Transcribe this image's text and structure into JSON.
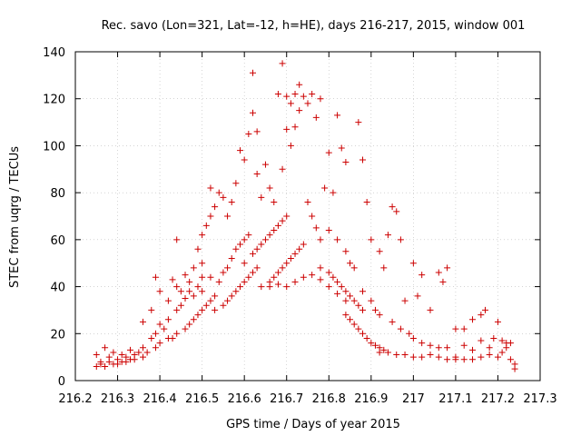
{
  "chart_data": {
    "type": "scatter",
    "title": "Rec. savo (Lon=321, Lat=-12, h=HE), days 216-217, 2015, window 001",
    "xlabel": "GPS time / Days of year 2015",
    "ylabel": "STEC from uqrg / TECUs",
    "xlim": [
      216.2,
      217.3
    ],
    "ylim": [
      0,
      140
    ],
    "xticks": [
      "216.2",
      "216.3",
      "216.4",
      "216.5",
      "216.6",
      "216.7",
      "216.8",
      "216.9",
      "217",
      "217.1",
      "217.2",
      "217.3"
    ],
    "yticks": [
      "0",
      "20",
      "40",
      "60",
      "80",
      "100",
      "120",
      "140"
    ],
    "grid": true,
    "marker": "plus",
    "color": "#cc0000",
    "points": [
      [
        216.25,
        6
      ],
      [
        216.26,
        7
      ],
      [
        216.27,
        6
      ],
      [
        216.28,
        8
      ],
      [
        216.29,
        7
      ],
      [
        216.3,
        9
      ],
      [
        216.31,
        8
      ],
      [
        216.32,
        10
      ],
      [
        216.33,
        9
      ],
      [
        216.34,
        11
      ],
      [
        216.25,
        11
      ],
      [
        216.27,
        14
      ],
      [
        216.29,
        12
      ],
      [
        216.31,
        11
      ],
      [
        216.33,
        13
      ],
      [
        216.35,
        12
      ],
      [
        216.36,
        14
      ],
      [
        216.38,
        18
      ],
      [
        216.39,
        20
      ],
      [
        216.41,
        22
      ],
      [
        216.26,
        8
      ],
      [
        216.28,
        10
      ],
      [
        216.3,
        7
      ],
      [
        216.32,
        8
      ],
      [
        216.34,
        9
      ],
      [
        216.36,
        10
      ],
      [
        216.37,
        12
      ],
      [
        216.39,
        14
      ],
      [
        216.4,
        16
      ],
      [
        216.42,
        18
      ],
      [
        216.36,
        25
      ],
      [
        216.38,
        30
      ],
      [
        216.39,
        44
      ],
      [
        216.4,
        38
      ],
      [
        216.42,
        34
      ],
      [
        216.43,
        43
      ],
      [
        216.44,
        40
      ],
      [
        216.45,
        38
      ],
      [
        216.46,
        45
      ],
      [
        216.47,
        42
      ],
      [
        216.4,
        24
      ],
      [
        216.42,
        26
      ],
      [
        216.44,
        30
      ],
      [
        216.45,
        32
      ],
      [
        216.46,
        35
      ],
      [
        216.47,
        38
      ],
      [
        216.48,
        36
      ],
      [
        216.49,
        40
      ],
      [
        216.5,
        44
      ],
      [
        216.5,
        50
      ],
      [
        216.43,
        18
      ],
      [
        216.44,
        20
      ],
      [
        216.46,
        22
      ],
      [
        216.47,
        24
      ],
      [
        216.48,
        26
      ],
      [
        216.49,
        28
      ],
      [
        216.5,
        30
      ],
      [
        216.51,
        32
      ],
      [
        216.52,
        34
      ],
      [
        216.53,
        36
      ],
      [
        216.44,
        60
      ],
      [
        216.48,
        48
      ],
      [
        216.49,
        56
      ],
      [
        216.5,
        62
      ],
      [
        216.51,
        66
      ],
      [
        216.52,
        70
      ],
      [
        216.53,
        74
      ],
      [
        216.52,
        82
      ],
      [
        216.54,
        80
      ],
      [
        216.55,
        78
      ],
      [
        216.5,
        38
      ],
      [
        216.52,
        44
      ],
      [
        216.54,
        42
      ],
      [
        216.55,
        46
      ],
      [
        216.56,
        48
      ],
      [
        216.57,
        52
      ],
      [
        216.58,
        56
      ],
      [
        216.59,
        58
      ],
      [
        216.6,
        60
      ],
      [
        216.61,
        62
      ],
      [
        216.53,
        30
      ],
      [
        216.55,
        32
      ],
      [
        216.56,
        34
      ],
      [
        216.57,
        36
      ],
      [
        216.58,
        38
      ],
      [
        216.59,
        40
      ],
      [
        216.6,
        42
      ],
      [
        216.61,
        44
      ],
      [
        216.62,
        46
      ],
      [
        216.63,
        48
      ],
      [
        216.56,
        70
      ],
      [
        216.57,
        76
      ],
      [
        216.58,
        84
      ],
      [
        216.59,
        98
      ],
      [
        216.6,
        94
      ],
      [
        216.61,
        105
      ],
      [
        216.62,
        114
      ],
      [
        216.62,
        131
      ],
      [
        216.63,
        106
      ],
      [
        216.63,
        88
      ],
      [
        216.6,
        50
      ],
      [
        216.62,
        54
      ],
      [
        216.63,
        56
      ],
      [
        216.64,
        58
      ],
      [
        216.65,
        60
      ],
      [
        216.66,
        62
      ],
      [
        216.67,
        64
      ],
      [
        216.68,
        66
      ],
      [
        216.69,
        68
      ],
      [
        216.7,
        70
      ],
      [
        216.64,
        78
      ],
      [
        216.65,
        92
      ],
      [
        216.66,
        82
      ],
      [
        216.67,
        76
      ],
      [
        216.68,
        122
      ],
      [
        216.69,
        135
      ],
      [
        216.7,
        121
      ],
      [
        216.71,
        118
      ],
      [
        216.72,
        122
      ],
      [
        216.73,
        126
      ],
      [
        216.64,
        40
      ],
      [
        216.66,
        42
      ],
      [
        216.67,
        44
      ],
      [
        216.68,
        46
      ],
      [
        216.69,
        48
      ],
      [
        216.7,
        50
      ],
      [
        216.71,
        52
      ],
      [
        216.72,
        54
      ],
      [
        216.73,
        56
      ],
      [
        216.74,
        58
      ],
      [
        216.69,
        90
      ],
      [
        216.7,
        107
      ],
      [
        216.71,
        100
      ],
      [
        216.72,
        108
      ],
      [
        216.73,
        115
      ],
      [
        216.74,
        121
      ],
      [
        216.75,
        118
      ],
      [
        216.76,
        122
      ],
      [
        216.77,
        112
      ],
      [
        216.78,
        120
      ],
      [
        216.66,
        40
      ],
      [
        216.68,
        41
      ],
      [
        216.7,
        40
      ],
      [
        216.72,
        42
      ],
      [
        216.74,
        44
      ],
      [
        216.76,
        45
      ],
      [
        216.78,
        43
      ],
      [
        216.8,
        40
      ],
      [
        216.82,
        37
      ],
      [
        216.84,
        34
      ],
      [
        216.75,
        76
      ],
      [
        216.76,
        70
      ],
      [
        216.77,
        65
      ],
      [
        216.78,
        60
      ],
      [
        216.79,
        82
      ],
      [
        216.8,
        97
      ],
      [
        216.81,
        80
      ],
      [
        216.82,
        113
      ],
      [
        216.83,
        99
      ],
      [
        216.84,
        93
      ],
      [
        216.78,
        48
      ],
      [
        216.8,
        46
      ],
      [
        216.81,
        44
      ],
      [
        216.82,
        42
      ],
      [
        216.83,
        40
      ],
      [
        216.84,
        38
      ],
      [
        216.85,
        36
      ],
      [
        216.86,
        34
      ],
      [
        216.87,
        32
      ],
      [
        216.88,
        30
      ],
      [
        216.8,
        64
      ],
      [
        216.82,
        60
      ],
      [
        216.84,
        55
      ],
      [
        216.85,
        50
      ],
      [
        216.86,
        48
      ],
      [
        216.87,
        110
      ],
      [
        216.88,
        94
      ],
      [
        216.89,
        76
      ],
      [
        216.9,
        60
      ],
      [
        216.92,
        55
      ],
      [
        216.84,
        28
      ],
      [
        216.85,
        26
      ],
      [
        216.86,
        24
      ],
      [
        216.87,
        22
      ],
      [
        216.88,
        20
      ],
      [
        216.89,
        18
      ],
      [
        216.9,
        16
      ],
      [
        216.91,
        15
      ],
      [
        216.92,
        14
      ],
      [
        216.93,
        13
      ],
      [
        216.88,
        38
      ],
      [
        216.9,
        34
      ],
      [
        216.91,
        30
      ],
      [
        216.92,
        28
      ],
      [
        216.93,
        48
      ],
      [
        216.94,
        62
      ],
      [
        216.95,
        74
      ],
      [
        216.96,
        72
      ],
      [
        216.97,
        60
      ],
      [
        216.98,
        34
      ],
      [
        216.92,
        12
      ],
      [
        216.94,
        12
      ],
      [
        216.96,
        11
      ],
      [
        216.98,
        11
      ],
      [
        217.0,
        10
      ],
      [
        217.02,
        10
      ],
      [
        217.04,
        11
      ],
      [
        217.06,
        10
      ],
      [
        217.08,
        9
      ],
      [
        217.1,
        9
      ],
      [
        216.95,
        25
      ],
      [
        216.97,
        22
      ],
      [
        216.99,
        20
      ],
      [
        217.0,
        50
      ],
      [
        217.01,
        36
      ],
      [
        217.02,
        45
      ],
      [
        217.04,
        30
      ],
      [
        217.06,
        46
      ],
      [
        217.07,
        42
      ],
      [
        217.08,
        48
      ],
      [
        217.0,
        18
      ],
      [
        217.02,
        16
      ],
      [
        217.04,
        15
      ],
      [
        217.06,
        14
      ],
      [
        217.08,
        14
      ],
      [
        217.1,
        22
      ],
      [
        217.12,
        22
      ],
      [
        217.14,
        26
      ],
      [
        217.16,
        28
      ],
      [
        217.17,
        30
      ],
      [
        217.1,
        10
      ],
      [
        217.12,
        9
      ],
      [
        217.14,
        9
      ],
      [
        217.16,
        10
      ],
      [
        217.18,
        11
      ],
      [
        217.2,
        10
      ],
      [
        217.21,
        12
      ],
      [
        217.22,
        14
      ],
      [
        217.23,
        16
      ],
      [
        217.24,
        7
      ],
      [
        217.12,
        15
      ],
      [
        217.14,
        13
      ],
      [
        217.16,
        17
      ],
      [
        217.18,
        14
      ],
      [
        217.19,
        18
      ],
      [
        217.2,
        25
      ],
      [
        217.21,
        17
      ],
      [
        217.22,
        16
      ],
      [
        217.23,
        9
      ],
      [
        217.24,
        5
      ]
    ]
  }
}
